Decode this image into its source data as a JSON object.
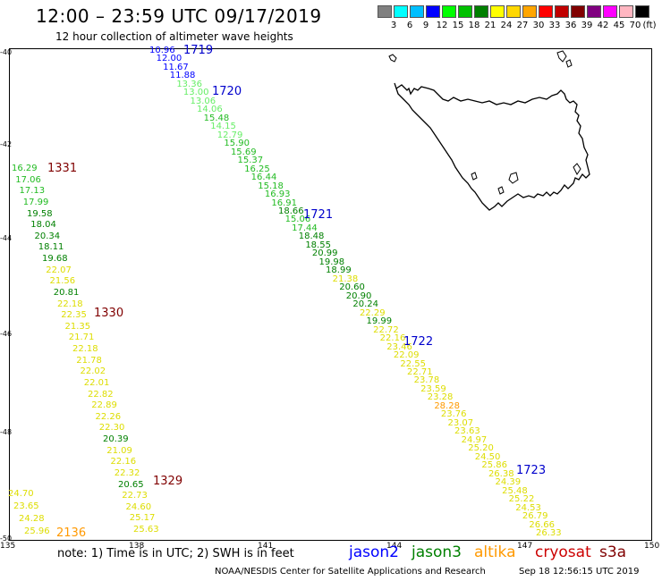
{
  "header": {
    "title": "12:00 – 23:59 UTC 09/17/2019",
    "subtitle": "12 hour collection of altimeter wave heights"
  },
  "scale": {
    "unit": "(ft)",
    "colors": [
      "#808080",
      "#00ffff",
      "#00bfff",
      "#0000ff",
      "#00ff00",
      "#00c000",
      "#008000",
      "#ffff00",
      "#ffd700",
      "#ffa500",
      "#ff0000",
      "#c00000",
      "#800000",
      "#800080",
      "#ff00ff",
      "#ffb6c1",
      "#000000"
    ],
    "labels": [
      "3",
      "6",
      "9",
      "12",
      "15",
      "18",
      "21",
      "24",
      "27",
      "30",
      "33",
      "36",
      "39",
      "42",
      "45",
      "70"
    ]
  },
  "axes": {
    "y_labels": [
      "-40",
      "-42",
      "-44",
      "-46",
      "-48",
      "-50"
    ],
    "x_labels": [
      "135",
      "138",
      "141",
      "144",
      "147",
      "150"
    ]
  },
  "footer": {
    "note": "note: 1) Time is in UTC; 2) SWH is in feet",
    "legend": [
      {
        "name": "jason2",
        "color": "#0000ff"
      },
      {
        "name": "jason3",
        "color": "#008000"
      },
      {
        "name": "altika",
        "color": "#ff9900"
      },
      {
        "name": "cryosat",
        "color": "#cc0000"
      },
      {
        "name": "s3a",
        "color": "#800000"
      }
    ],
    "credit": "NOAA/NESDIS Center for Satellite Applications and Research",
    "timestamp": "Sep 18 12:56:15 UTC 2019"
  },
  "passes": [
    {
      "label": "1719",
      "color": "#0000cc"
    },
    {
      "label": "1720",
      "color": "#0000cc"
    },
    {
      "label": "1721",
      "color": "#0000cc"
    },
    {
      "label": "1722",
      "color": "#0000cc"
    },
    {
      "label": "1723",
      "color": "#0000cc"
    },
    {
      "label": "1331",
      "color": "#800000"
    },
    {
      "label": "1330",
      "color": "#800000"
    },
    {
      "label": "1329",
      "color": "#800000"
    },
    {
      "label": "2136",
      "color": "#ff9900"
    }
  ],
  "tracks": {
    "east": [
      {
        "v": "10.96",
        "c": "#0000ff"
      },
      {
        "v": "12.00",
        "c": "#0000ff"
      },
      {
        "v": "11.67",
        "c": "#0000ff"
      },
      {
        "v": "11.88",
        "c": "#0000ff"
      },
      {
        "v": "13.36",
        "c": "#66ee66"
      },
      {
        "v": "13.00",
        "c": "#66ee66"
      },
      {
        "v": "13.06",
        "c": "#66ee66"
      },
      {
        "v": "14.06",
        "c": "#66ee66"
      },
      {
        "v": "15.48",
        "c": "#22bb22"
      },
      {
        "v": "14.15",
        "c": "#66ee66"
      },
      {
        "v": "12.79",
        "c": "#66ee66"
      },
      {
        "v": "15.90",
        "c": "#22bb22"
      },
      {
        "v": "15.69",
        "c": "#22bb22"
      },
      {
        "v": "15.37",
        "c": "#22bb22"
      },
      {
        "v": "16.25",
        "c": "#22bb22"
      },
      {
        "v": "16.44",
        "c": "#22bb22"
      },
      {
        "v": "15.18",
        "c": "#22bb22"
      },
      {
        "v": "16.93",
        "c": "#22bb22"
      },
      {
        "v": "16.91",
        "c": "#22bb22"
      },
      {
        "v": "18.66",
        "c": "#008000"
      },
      {
        "v": "15.06",
        "c": "#22bb22"
      },
      {
        "v": "17.44",
        "c": "#22bb22"
      },
      {
        "v": "18.48",
        "c": "#008000"
      },
      {
        "v": "18.55",
        "c": "#008000"
      },
      {
        "v": "20.99",
        "c": "#008000"
      },
      {
        "v": "19.98",
        "c": "#008000"
      },
      {
        "v": "18.99",
        "c": "#008000"
      },
      {
        "v": "21.38",
        "c": "#dddd00"
      },
      {
        "v": "20.60",
        "c": "#008000"
      },
      {
        "v": "20.90",
        "c": "#008000"
      },
      {
        "v": "20.24",
        "c": "#008000"
      },
      {
        "v": "22.29",
        "c": "#dddd00"
      },
      {
        "v": "19.99",
        "c": "#008000"
      },
      {
        "v": "22.72",
        "c": "#dddd00"
      },
      {
        "v": "22.16",
        "c": "#dddd00"
      },
      {
        "v": "23.46",
        "c": "#dddd00"
      },
      {
        "v": "22.09",
        "c": "#dddd00"
      },
      {
        "v": "22.55",
        "c": "#dddd00"
      },
      {
        "v": "22.71",
        "c": "#dddd00"
      },
      {
        "v": "23.78",
        "c": "#dddd00"
      },
      {
        "v": "23.59",
        "c": "#dddd00"
      },
      {
        "v": "23.28",
        "c": "#dddd00"
      },
      {
        "v": "28.28",
        "c": "#ff9900"
      },
      {
        "v": "23.76",
        "c": "#dddd00"
      },
      {
        "v": "23.07",
        "c": "#dddd00"
      },
      {
        "v": "23.63",
        "c": "#dddd00"
      },
      {
        "v": "24.97",
        "c": "#dddd00"
      },
      {
        "v": "25.20",
        "c": "#dddd00"
      },
      {
        "v": "24.50",
        "c": "#dddd00"
      },
      {
        "v": "25.86",
        "c": "#dddd00"
      },
      {
        "v": "26.38",
        "c": "#dddd00"
      },
      {
        "v": "24.39",
        "c": "#dddd00"
      },
      {
        "v": "25.48",
        "c": "#dddd00"
      },
      {
        "v": "25.22",
        "c": "#dddd00"
      },
      {
        "v": "24.53",
        "c": "#dddd00"
      },
      {
        "v": "26.79",
        "c": "#dddd00"
      },
      {
        "v": "26.66",
        "c": "#dddd00"
      },
      {
        "v": "26.33",
        "c": "#dddd00"
      }
    ],
    "west": [
      {
        "v": "16.29",
        "c": "#22bb22"
      },
      {
        "v": "17.06",
        "c": "#22bb22"
      },
      {
        "v": "17.13",
        "c": "#22bb22"
      },
      {
        "v": "17.99",
        "c": "#22bb22"
      },
      {
        "v": "19.58",
        "c": "#008000"
      },
      {
        "v": "18.04",
        "c": "#008000"
      },
      {
        "v": "20.34",
        "c": "#008000"
      },
      {
        "v": "18.11",
        "c": "#008000"
      },
      {
        "v": "19.68",
        "c": "#008000"
      },
      {
        "v": "22.07",
        "c": "#dddd00"
      },
      {
        "v": "21.56",
        "c": "#dddd00"
      },
      {
        "v": "20.81",
        "c": "#008000"
      },
      {
        "v": "22.18",
        "c": "#dddd00"
      },
      {
        "v": "22.35",
        "c": "#dddd00"
      },
      {
        "v": "21.35",
        "c": "#dddd00"
      },
      {
        "v": "21.71",
        "c": "#dddd00"
      },
      {
        "v": "22.18",
        "c": "#dddd00"
      },
      {
        "v": "21.78",
        "c": "#dddd00"
      },
      {
        "v": "22.02",
        "c": "#dddd00"
      },
      {
        "v": "22.01",
        "c": "#dddd00"
      },
      {
        "v": "22.82",
        "c": "#dddd00"
      },
      {
        "v": "22.89",
        "c": "#dddd00"
      },
      {
        "v": "22.26",
        "c": "#dddd00"
      },
      {
        "v": "22.30",
        "c": "#dddd00"
      },
      {
        "v": "20.39",
        "c": "#008000"
      },
      {
        "v": "21.09",
        "c": "#dddd00"
      },
      {
        "v": "22.16",
        "c": "#dddd00"
      },
      {
        "v": "22.32",
        "c": "#dddd00"
      },
      {
        "v": "20.65",
        "c": "#008000"
      },
      {
        "v": "22.73",
        "c": "#dddd00"
      },
      {
        "v": "24.60",
        "c": "#dddd00"
      },
      {
        "v": "25.17",
        "c": "#dddd00"
      },
      {
        "v": "25.63",
        "c": "#dddd00"
      }
    ],
    "southwest": [
      {
        "v": "24.70",
        "c": "#dddd00"
      },
      {
        "v": "23.65",
        "c": "#dddd00"
      },
      {
        "v": "24.28",
        "c": "#dddd00"
      },
      {
        "v": "25.96",
        "c": "#dddd00"
      }
    ]
  }
}
